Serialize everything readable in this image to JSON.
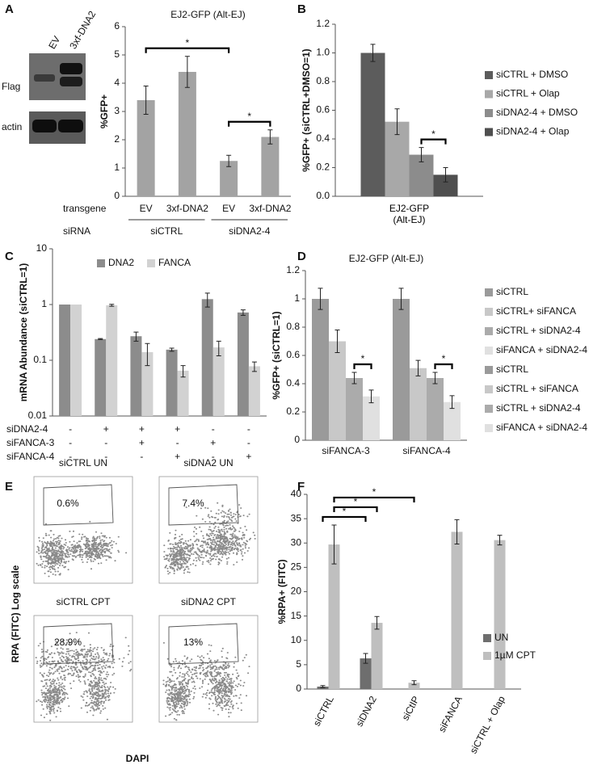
{
  "panel_labels": [
    "A",
    "B",
    "C",
    "D",
    "E",
    "F"
  ],
  "blot": {
    "lanes": [
      "EV",
      "3xf-DNA2"
    ],
    "rows": [
      "Flag",
      "actin"
    ]
  },
  "flow": {
    "plots": [
      {
        "title": "siCTRL UN",
        "gate": "0.6%"
      },
      {
        "title": "siDNA2 UN",
        "gate": "7.4%"
      },
      {
        "title": "siCTRL CPT",
        "gate": "28.9%"
      },
      {
        "title": "siDNA2 CPT",
        "gate": "13%"
      }
    ],
    "y_label": "RPA (FITC) Log scale",
    "x_label": "DAPI"
  },
  "chart_data": [
    {
      "type": "bar",
      "title": "EJ2-GFP (Alt-EJ)",
      "y_label": "%GFP+",
      "ylim": [
        0,
        6
      ],
      "yticks": [
        0,
        1,
        2,
        3,
        4,
        5,
        6
      ],
      "categories": [
        "EV",
        "3xf-DNA2",
        "EV",
        "3xf-DNA2"
      ],
      "values": [
        3.4,
        4.4,
        1.25,
        2.1
      ],
      "errors": [
        0.5,
        0.55,
        0.2,
        0.25
      ],
      "color": "#a3a3a3",
      "row_labels": [
        "transgene",
        "siRNA"
      ],
      "group_labels": [
        "siCTRL",
        "siDNA2-4"
      ],
      "brackets": [
        {
          "from": [
            0,
            0
          ],
          "to": [
            0,
            2
          ],
          "label": "*"
        },
        {
          "from": [
            0,
            2
          ],
          "to": [
            0,
            3
          ],
          "label": "*"
        }
      ]
    },
    {
      "type": "bar",
      "y_label": "%GFP+ (siCTRL+DMSO=1)",
      "ylim": [
        0,
        1.2
      ],
      "yticks": [
        {
          "value": 0,
          "label": "0.0"
        },
        0.2,
        0.4,
        0.6,
        0.8,
        {
          "value": 1,
          "label": "1.0"
        },
        1.2
      ],
      "categories": [
        "EJ2-GFP (Alt-EJ)"
      ],
      "series": [
        {
          "name": "siCTRL + DMSO",
          "color": "#5c5c5c",
          "values": [
            1.0
          ],
          "errors": [
            0.06
          ]
        },
        {
          "name": "siCTRL + Olap",
          "color": "#a8a8a8",
          "values": [
            0.52
          ],
          "errors": [
            0.09
          ]
        },
        {
          "name": "siDNA2-4 + DMSO",
          "color": "#8c8c8c",
          "values": [
            0.29
          ],
          "errors": [
            0.05
          ]
        },
        {
          "name": "siDNA2-4 + Olap",
          "color": "#4f4f4f",
          "values": [
            0.15
          ],
          "errors": [
            0.05
          ]
        }
      ],
      "legend": "right",
      "brackets": [
        {
          "from": [
            2,
            0
          ],
          "to": [
            3,
            0
          ],
          "label": "*"
        }
      ]
    },
    {
      "type": "bar",
      "y_label": "mRNA Abundance (siCTRL=1)",
      "log_scale": true,
      "ylim": [
        0.01,
        10
      ],
      "yticks": [
        0.01,
        0.1,
        1,
        10
      ],
      "series": [
        {
          "name": "DNA2",
          "color": "#8c8c8c",
          "values": [
            1,
            0.24,
            0.27,
            0.155,
            1.25,
            0.72
          ],
          "errors": [
            null,
            0.005,
            0.05,
            0.01,
            0.35,
            0.08
          ]
        },
        {
          "name": "FANCA",
          "color": "#d2d2d2",
          "values": [
            1,
            0.97,
            0.14,
            0.065,
            0.17,
            0.078
          ],
          "errors": [
            null,
            0.04,
            0.06,
            0.015,
            0.05,
            0.015
          ]
        }
      ],
      "legend": "top",
      "conditions": [
        {
          "name": "siDNA2-4",
          "marks": [
            "-",
            "+",
            "+",
            "+",
            "-",
            "-"
          ]
        },
        {
          "name": "siFANCA-3",
          "marks": [
            "-",
            "-",
            "+",
            "-",
            "+",
            "-"
          ]
        },
        {
          "name": "siFANCA-4",
          "marks": [
            "-",
            "-",
            "-",
            "+",
            "-",
            "+"
          ]
        }
      ]
    },
    {
      "type": "bar",
      "title": "EJ2-GFP (Alt-EJ)",
      "y_label": "%GFP+ (siCTRL=1)",
      "ylim": [
        0,
        1.2
      ],
      "yticks": [
        0,
        0.2,
        0.4,
        0.6,
        0.8,
        1,
        1.2
      ],
      "categories": [
        "siFANCA-3",
        "siFANCA-4"
      ],
      "series": [
        {
          "name": "siCTRL",
          "color": "#9a9a9a",
          "values": [
            1.0,
            null
          ],
          "errors": [
            0.075,
            null
          ]
        },
        {
          "name": "siCTRL+ siFANCA",
          "color": "#c8c8c8",
          "values": [
            0.7,
            null
          ],
          "errors": [
            0.08,
            null
          ]
        },
        {
          "name": "siCTRL + siDNA2-4",
          "color": "#ababab",
          "values": [
            0.44,
            null
          ],
          "errors": [
            0.04,
            null
          ]
        },
        {
          "name": "siFANCA + siDNA2-4",
          "color": "#e0e0e0",
          "values": [
            0.31,
            null
          ],
          "errors": [
            0.045,
            null
          ]
        },
        {
          "name": "siCTRL",
          "color": "#9a9a9a",
          "values": [
            null,
            1.0
          ],
          "errors": [
            null,
            0.075
          ]
        },
        {
          "name": "siCTRL + siFANCA",
          "color": "#c8c8c8",
          "values": [
            null,
            0.51
          ],
          "errors": [
            null,
            0.055
          ]
        },
        {
          "name": "siCTRL + siDNA2-4",
          "color": "#ababab",
          "values": [
            null,
            0.44
          ],
          "errors": [
            null,
            0.04
          ]
        },
        {
          "name": "siFANCA + siDNA2-4",
          "color": "#e0e0e0",
          "values": [
            null,
            0.27
          ],
          "errors": [
            null,
            0.045
          ]
        }
      ],
      "legend": "right",
      "brackets": [
        {
          "from": [
            2,
            0
          ],
          "to": [
            3,
            0
          ],
          "label": "*"
        },
        {
          "from": [
            6,
            1
          ],
          "to": [
            7,
            1
          ],
          "label": "*"
        }
      ]
    },
    {
      "type": "bar",
      "y_label": "%RPA+ (FITC)",
      "ylim": [
        0,
        40
      ],
      "yticks": [
        0,
        5,
        10,
        15,
        20,
        25,
        30,
        35,
        40
      ],
      "categories": [
        "siCTRL",
        "siDNA2",
        "siCtIP",
        "siFANCA",
        "siCTRL + Olap"
      ],
      "series": [
        {
          "name": "UN",
          "color": "#6e6e6e",
          "values": [
            0.5,
            6.3,
            null,
            null,
            null
          ],
          "errors": [
            0.2,
            1.0,
            null,
            null,
            null
          ]
        },
        {
          "name": "1µM CPT",
          "color": "#bfbfbf",
          "values": [
            29.7,
            13.6,
            1.3,
            32.3,
            30.6
          ],
          "errors": [
            4.0,
            1.3,
            0.4,
            2.5,
            1.0
          ]
        }
      ],
      "legend": "right",
      "brackets": [
        {
          "from": [
            0,
            0
          ],
          "to": [
            0,
            1
          ],
          "label": "*"
        },
        {
          "from": [
            1,
            0
          ],
          "to": [
            1,
            1
          ],
          "label": "*"
        },
        {
          "from": [
            1,
            0
          ],
          "to": [
            1,
            2
          ],
          "label": "*"
        }
      ]
    }
  ]
}
